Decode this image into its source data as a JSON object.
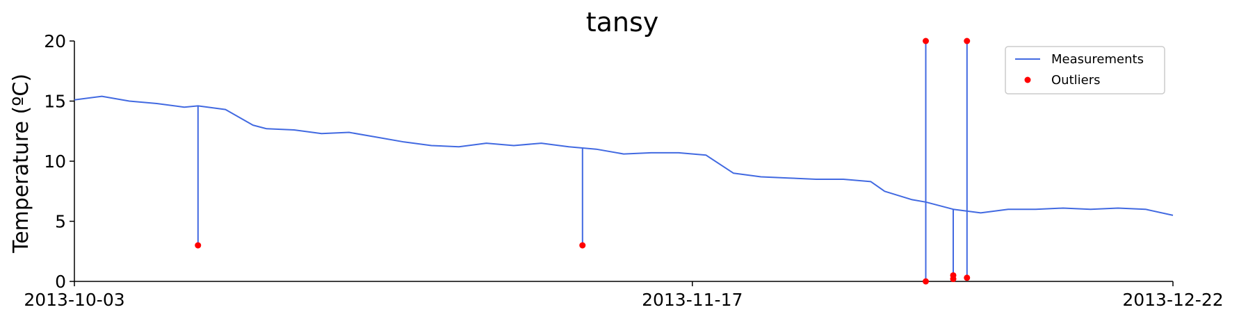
{
  "chart_data": {
    "type": "line",
    "title": "tansy",
    "xlabel": "",
    "ylabel": "Temperature (ºC)",
    "x_type": "date",
    "xlim": [
      "2013-10-03",
      "2013-12-22"
    ],
    "ylim": [
      0,
      20
    ],
    "x_ticks": [
      "2013-10-03",
      "2013-11-17",
      "2013-12-22"
    ],
    "y_ticks": [
      0,
      5,
      10,
      15,
      20
    ],
    "grid": false,
    "legend_position": "top-right",
    "series": [
      {
        "name": "Measurements",
        "kind": "line",
        "color": "#4169e1",
        "x": [
          "2013-10-03",
          "2013-10-05",
          "2013-10-07",
          "2013-10-09",
          "2013-10-11",
          "2013-10-12",
          "2013-10-14",
          "2013-10-16",
          "2013-10-17",
          "2013-10-19",
          "2013-10-21",
          "2013-10-23",
          "2013-10-25",
          "2013-10-27",
          "2013-10-29",
          "2013-10-31",
          "2013-11-02",
          "2013-11-04",
          "2013-11-06",
          "2013-11-08",
          "2013-11-10",
          "2013-11-12",
          "2013-11-14",
          "2013-11-16",
          "2013-11-18",
          "2013-11-20",
          "2013-11-22",
          "2013-11-24",
          "2013-11-26",
          "2013-11-28",
          "2013-11-30",
          "2013-12-01",
          "2013-12-03",
          "2013-12-04",
          "2013-12-06",
          "2013-12-08",
          "2013-12-10",
          "2013-12-12",
          "2013-12-14",
          "2013-12-16",
          "2013-12-18",
          "2013-12-20",
          "2013-12-22"
        ],
        "values": [
          15.1,
          15.4,
          15.0,
          14.8,
          14.5,
          14.6,
          14.3,
          13.0,
          12.7,
          12.6,
          12.3,
          12.4,
          12.0,
          11.6,
          11.3,
          11.2,
          11.5,
          11.3,
          11.5,
          11.2,
          11.0,
          10.6,
          10.7,
          10.7,
          10.5,
          9.0,
          8.7,
          8.6,
          8.5,
          8.5,
          8.3,
          7.5,
          6.8,
          6.6,
          6.0,
          5.7,
          6.0,
          6.0,
          6.1,
          6.0,
          6.1,
          6.0,
          5.5
        ]
      },
      {
        "name": "Outliers",
        "kind": "scatter",
        "color": "#ff0000",
        "x": [
          "2013-10-12",
          "2013-11-09",
          "2013-12-04",
          "2013-12-04",
          "2013-12-06",
          "2013-12-06",
          "2013-12-07",
          "2013-12-07"
        ],
        "values": [
          3.0,
          3.0,
          20.0,
          0.0,
          0.5,
          0.2,
          20.0,
          0.3
        ]
      }
    ]
  }
}
